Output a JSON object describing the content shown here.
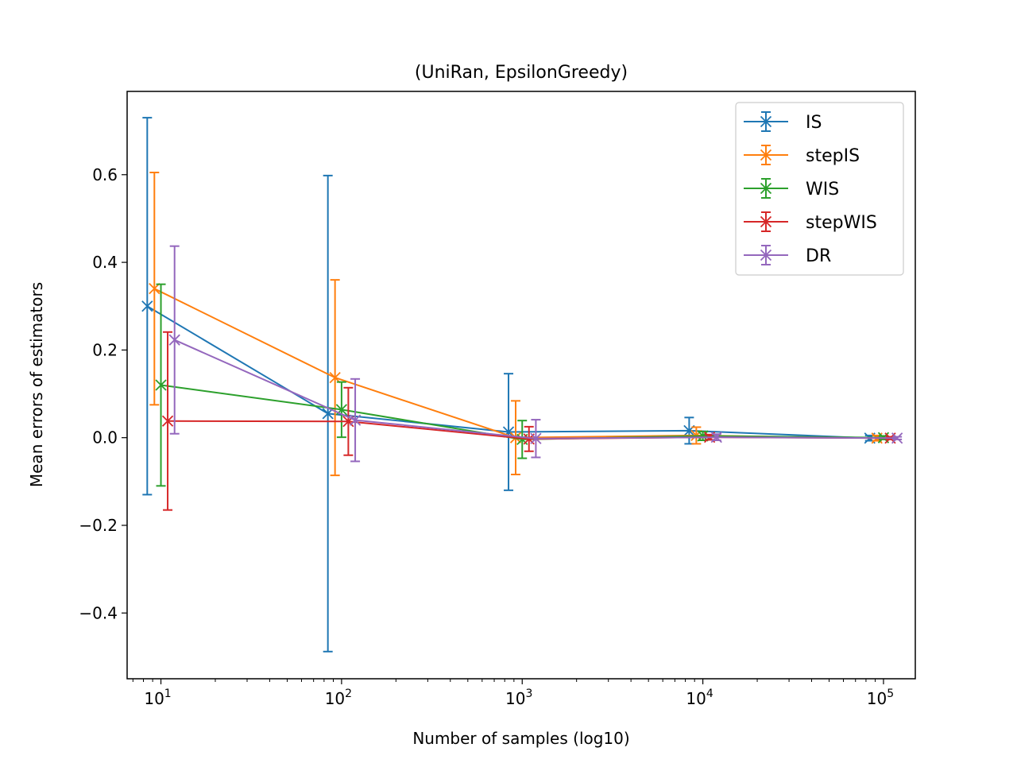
{
  "chart_data": {
    "type": "line",
    "title": "(UniRan, EpsilonGreedy)",
    "xlabel": "Number of samples (log10)",
    "ylabel": "Mean errors of estimators",
    "xscale": "log",
    "xlim": [
      6.5,
      150000
    ],
    "ylim": [
      -0.55,
      0.79
    ],
    "yticks": [
      -0.4,
      -0.2,
      0.0,
      0.2,
      0.4,
      0.6
    ],
    "ytick_labels": [
      "−0.4",
      "−0.2",
      "0.0",
      "0.2",
      "0.4",
      "0.6"
    ],
    "xticks": [
      10,
      100,
      1000,
      10000,
      100000
    ],
    "xtick_labels": [
      {
        "base": "10",
        "exp": "1"
      },
      {
        "base": "10",
        "exp": "2"
      },
      {
        "base": "10",
        "exp": "3"
      },
      {
        "base": "10",
        "exp": "4"
      },
      {
        "base": "10",
        "exp": "5"
      }
    ],
    "legend_position": "top-right",
    "series": [
      {
        "name": "IS",
        "color": "#1f77b4",
        "x": [
          8.4,
          84,
          840,
          8400,
          84000
        ],
        "y": [
          0.3,
          0.055,
          0.013,
          0.016,
          -0.001
        ],
        "err": [
          0.43,
          0.543,
          0.133,
          0.03,
          0.006
        ]
      },
      {
        "name": "stepIS",
        "color": "#ff7f0e",
        "x": [
          9.2,
          92,
          920,
          9200,
          92000
        ],
        "y": [
          0.34,
          0.137,
          0.0,
          0.005,
          -0.001
        ],
        "err": [
          0.265,
          0.223,
          0.084,
          0.019,
          0.006
        ]
      },
      {
        "name": "WIS",
        "color": "#2ca02c",
        "x": [
          10,
          100,
          1000,
          10000,
          100000
        ],
        "y": [
          0.12,
          0.064,
          -0.004,
          0.004,
          0.0
        ],
        "err": [
          0.23,
          0.063,
          0.043,
          0.01,
          0.004
        ]
      },
      {
        "name": "stepWIS",
        "color": "#d62728",
        "x": [
          10.9,
          109,
          1090,
          10900,
          109000
        ],
        "y": [
          0.038,
          0.037,
          -0.003,
          0.001,
          -0.001
        ],
        "err": [
          0.203,
          0.077,
          0.028,
          0.006,
          0.003
        ]
      },
      {
        "name": "DR",
        "color": "#9467bd",
        "x": [
          11.9,
          119,
          1190,
          11900,
          119000
        ],
        "y": [
          0.223,
          0.04,
          -0.002,
          0.001,
          -0.001
        ],
        "err": [
          0.214,
          0.094,
          0.043,
          0.007,
          0.003
        ]
      }
    ]
  }
}
